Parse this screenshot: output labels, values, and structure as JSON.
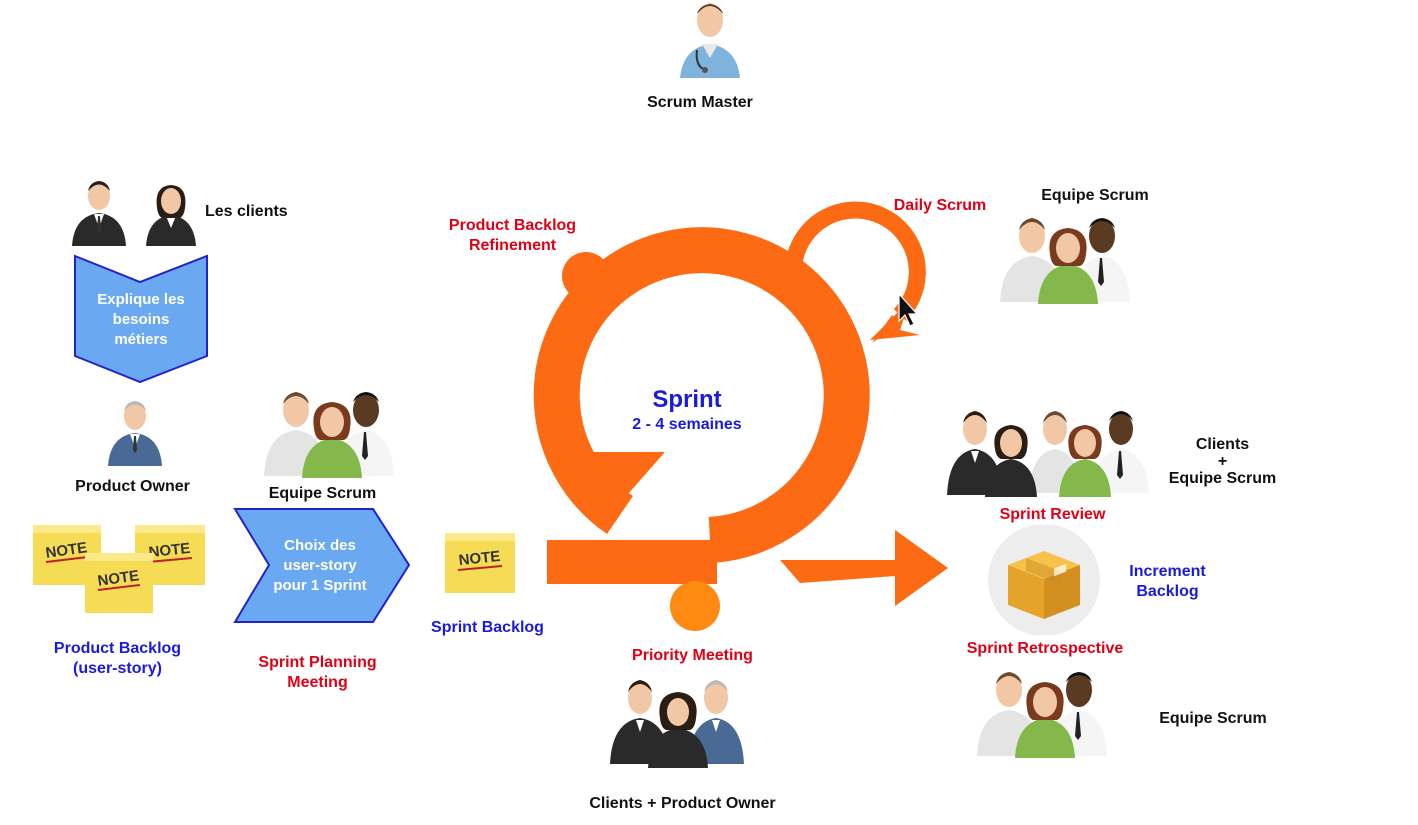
{
  "labels": {
    "scrum_master": "Scrum Master",
    "les_clients": "Les clients",
    "explique": [
      "Explique les",
      "besoins",
      "métiers"
    ],
    "product_owner": "Product Owner",
    "equipe_scrum_left": "Equipe Scrum",
    "choix": [
      "Choix des",
      "user-story",
      "pour 1 Sprint"
    ],
    "product_backlog": [
      "Product Backlog",
      "(user-story)"
    ],
    "sprint_planning": [
      "Sprint Planning",
      "Meeting"
    ],
    "sprint_backlog": "Sprint Backlog",
    "note": "NOTE",
    "pbr": [
      "Product Backlog",
      "Refinement"
    ],
    "sprint_title": "Sprint",
    "sprint_duration": "2 - 4 semaines",
    "daily_scrum": "Daily Scrum",
    "equipe_scrum_top": "Equipe Scrum",
    "priority_meeting": "Priority Meeting",
    "clients_po": "Clients + Product Owner",
    "clients_team": [
      "Clients",
      "+",
      "Equipe Scrum"
    ],
    "sprint_review": "Sprint Review",
    "increment": [
      "Increment",
      "Backlog"
    ],
    "sprint_retro": "Sprint Retrospective",
    "equipe_scrum_bottom": "Equipe Scrum"
  },
  "colors": {
    "orange": "#fd6a14",
    "light_orange": "#fe8a12",
    "shape_blue": "#6aa8f2",
    "shape_border": "#2222cc",
    "note_yellow": "#f6dc55",
    "red_text": "#e00015",
    "blue_text": "#1a1adb"
  },
  "icons": [
    "doctor-icon",
    "businessman-icon",
    "businesswoman-icon",
    "team-icon",
    "sticky-note-icon",
    "cardboard-box-icon",
    "mouse-cursor-icon"
  ]
}
